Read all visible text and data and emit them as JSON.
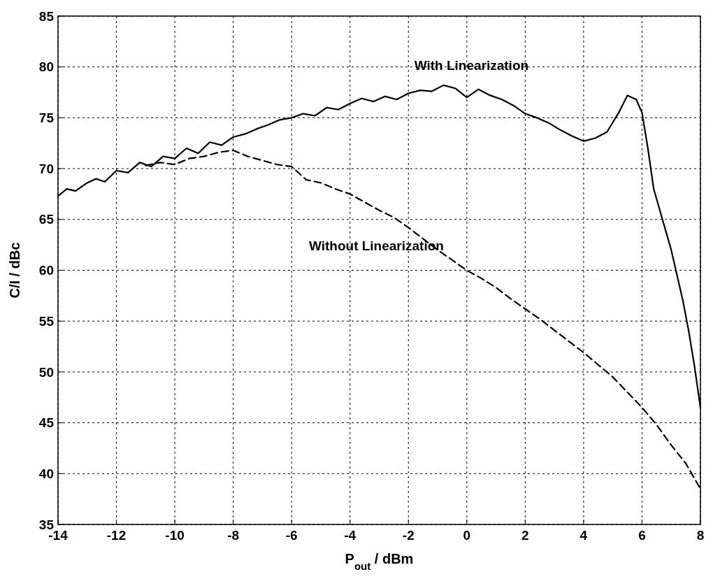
{
  "chart_data": {
    "type": "line",
    "xlabel": "P$_{out}$ / dBm",
    "ylabel": "C/I / dBc",
    "xlim": [
      -14,
      8
    ],
    "xticks": [
      -14,
      -12,
      -10,
      -8,
      -6,
      -4,
      -2,
      0,
      2,
      4,
      6,
      8
    ],
    "ylim": [
      35,
      85
    ],
    "yticks": [
      35,
      40,
      45,
      50,
      55,
      60,
      65,
      70,
      75,
      80,
      85
    ],
    "grid": true,
    "series": [
      {
        "name": "With Linearization",
        "color": "#000000",
        "line_style": "solid",
        "x": [
          -14,
          -13.7,
          -13.4,
          -13,
          -12.7,
          -12.4,
          -12,
          -11.6,
          -11.2,
          -10.8,
          -10.4,
          -10,
          -9.6,
          -9.2,
          -8.8,
          -8.4,
          -8,
          -7.6,
          -7.2,
          -6.8,
          -6.4,
          -6,
          -5.6,
          -5.2,
          -4.8,
          -4.4,
          -4,
          -3.6,
          -3.2,
          -2.8,
          -2.4,
          -2,
          -1.6,
          -1.2,
          -0.8,
          -0.4,
          0,
          0.4,
          0.8,
          1.2,
          1.6,
          2,
          2.4,
          2.8,
          3.2,
          3.6,
          4,
          4.4,
          4.8,
          5.2,
          5.5,
          5.8,
          6,
          6.2,
          6.4,
          6.6,
          6.8,
          7,
          7.2,
          7.4,
          7.6,
          7.8,
          8
        ],
        "values": [
          67.3,
          68,
          67.8,
          68.6,
          69,
          68.7,
          69.8,
          69.6,
          70.6,
          70.2,
          71.2,
          71,
          72,
          71.5,
          72.6,
          72.3,
          73.1,
          73.4,
          73.9,
          74.3,
          74.8,
          75,
          75.4,
          75.2,
          76,
          75.8,
          76.4,
          76.9,
          76.6,
          77.1,
          76.8,
          77.4,
          77.7,
          77.6,
          78.2,
          77.9,
          77,
          77.8,
          77.2,
          76.8,
          76.2,
          75.4,
          75,
          74.5,
          73.8,
          73.2,
          72.7,
          73,
          73.6,
          75.5,
          77.2,
          76.8,
          75.5,
          72,
          68,
          66,
          64,
          62,
          59.5,
          57,
          54,
          50.5,
          46.5
        ]
      },
      {
        "name": "Without Linearization",
        "color": "#000000",
        "line_style": "dashed",
        "x": [
          -11,
          -10.5,
          -10,
          -9.5,
          -9,
          -8.5,
          -8,
          -7.5,
          -7,
          -6.5,
          -6,
          -5.5,
          -5,
          -4.5,
          -4,
          -3.5,
          -3,
          -2.5,
          -2,
          -1.5,
          -1,
          -0.5,
          0,
          0.5,
          1,
          1.5,
          2,
          2.5,
          3,
          3.5,
          4,
          4.5,
          5,
          5.5,
          6,
          6.5,
          7,
          7.5,
          8
        ],
        "values": [
          70.3,
          70.6,
          70.4,
          71,
          71.2,
          71.6,
          71.8,
          71.2,
          70.8,
          70.4,
          70.2,
          68.9,
          68.6,
          68,
          67.5,
          66.7,
          65.9,
          65.2,
          64.2,
          63.1,
          62,
          61,
          60,
          59.2,
          58.3,
          57.2,
          56.2,
          55.2,
          54.1,
          53,
          51.9,
          50.7,
          49.5,
          48,
          46.5,
          44.8,
          42.8,
          41,
          38.5
        ]
      }
    ]
  }
}
